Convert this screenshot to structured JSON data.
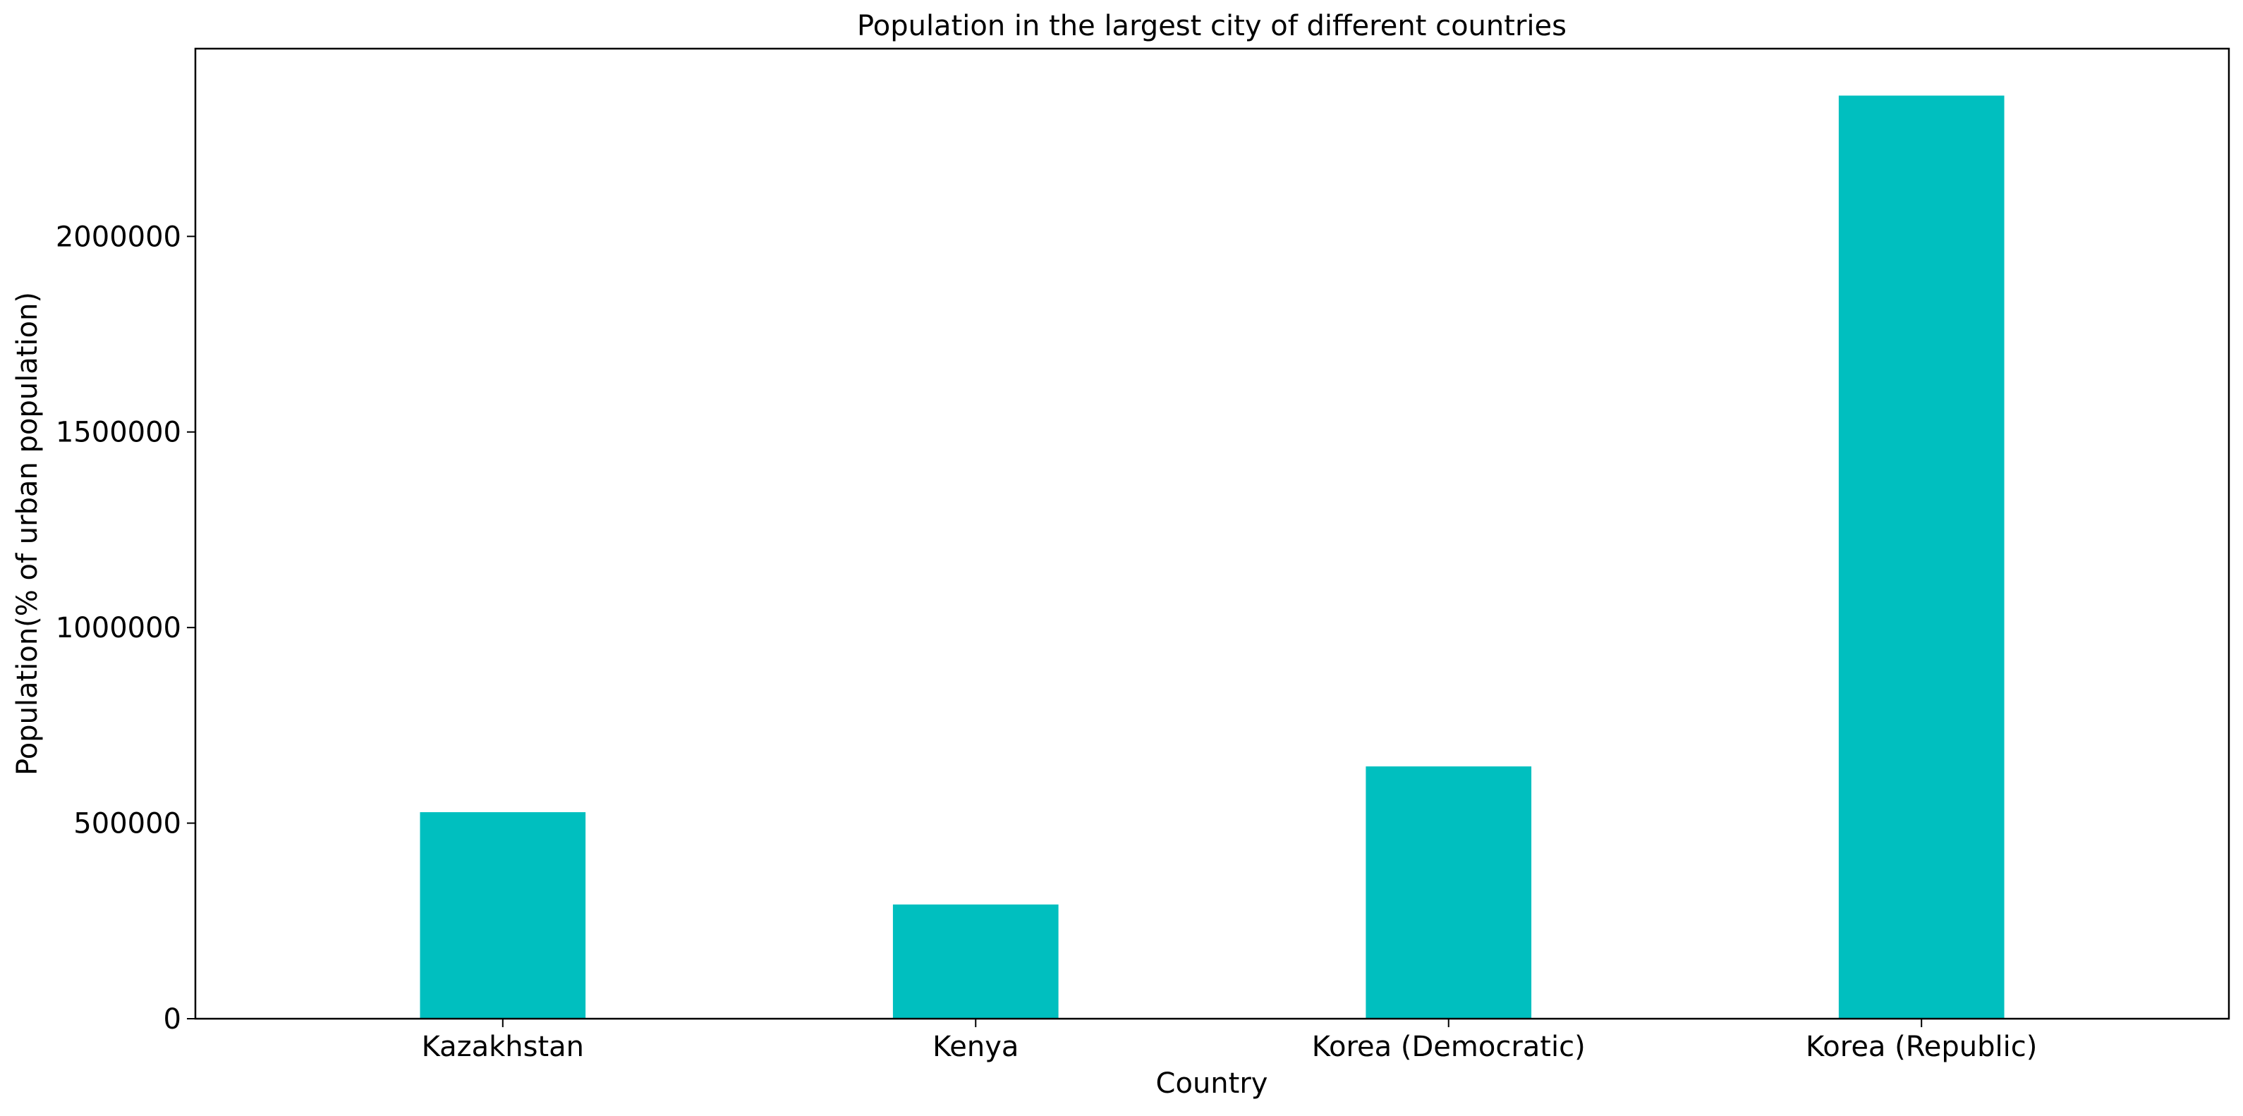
{
  "chart_data": {
    "type": "bar",
    "title": "Population in the largest city of different countries",
    "xlabel": "Country",
    "ylabel": "Population(% of urban population)",
    "categories": [
      "Kazakhstan",
      "Kenya",
      "Korea (Democratic)",
      "Korea (Republic)"
    ],
    "values": [
      528000,
      292000,
      645000,
      2360000
    ],
    "ylim": [
      0,
      2480000
    ],
    "yticks": [
      0,
      500000,
      1000000,
      1500000,
      2000000
    ],
    "ytick_labels": [
      "0",
      "500000",
      "1000000",
      "1500000",
      "2000000"
    ],
    "bar_color": "#00BFBF",
    "grid": false,
    "legend": "none"
  }
}
